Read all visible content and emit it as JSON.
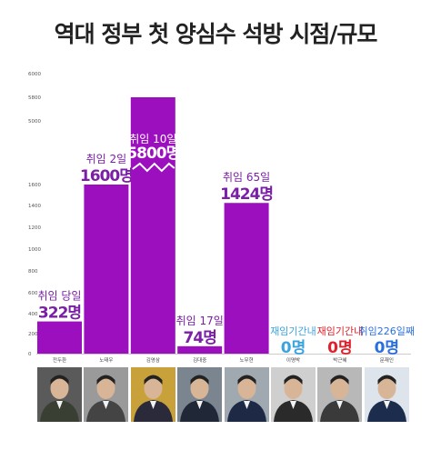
{
  "title": "역대 정부 첫 양심수 석방 시점/규모",
  "chart_data": {
    "type": "bar",
    "title": "역대 정부 첫 양심수 석방 시점/규모",
    "xlabel": "",
    "ylabel": "",
    "ylim": [
      0,
      6000
    ],
    "yticks": [
      0,
      200,
      400,
      600,
      800,
      1000,
      1200,
      1400,
      1600,
      5000,
      5800,
      6000
    ],
    "axis_break": true,
    "grid": false,
    "bar_color": "#9b0fbf",
    "categories": [
      "전두환",
      "노태우",
      "김영삼",
      "김대중",
      "노무현",
      "이명박",
      "박근혜",
      "문재인"
    ],
    "values": [
      322,
      1600,
      5800,
      74,
      1424,
      0,
      0,
      0
    ],
    "labels": [
      {
        "period": "취임 당일",
        "count": "322명",
        "color": "#7a1fa6"
      },
      {
        "period": "취임 2일",
        "count": "1600명",
        "color": "#7a1fa6"
      },
      {
        "period": "취임 10일",
        "count": "5800명",
        "color": "#ffffff"
      },
      {
        "period": "취임 17일",
        "count": "74명",
        "color": "#7a1fa6"
      },
      {
        "period": "취임 65일",
        "count": "1424명",
        "color": "#7a1fa6"
      },
      {
        "period": "재임기간내",
        "count": "0명",
        "color": "#3aa3e0"
      },
      {
        "period": "재임기간내",
        "count": "0명",
        "color": "#e0202a"
      },
      {
        "period": "취임226일째",
        "count": "0명",
        "color": "#2a6fe0"
      }
    ]
  },
  "photos": [
    {
      "name": "portrait-chun",
      "bg": "#5a5a5a",
      "suit": "#3a3f33"
    },
    {
      "name": "portrait-roh-tw",
      "bg": "#9a9a9a",
      "suit": "#444444"
    },
    {
      "name": "portrait-kim-ys",
      "bg": "#c9a13a",
      "suit": "#2a2a3a"
    },
    {
      "name": "portrait-kim-dj",
      "bg": "#7b8590",
      "suit": "#202838"
    },
    {
      "name": "portrait-roh-mh",
      "bg": "#a0a8b0",
      "suit": "#1e2a45"
    },
    {
      "name": "portrait-lee",
      "bg": "#cfcfcf",
      "suit": "#2a2a2a"
    },
    {
      "name": "portrait-park",
      "bg": "#b8b8b8",
      "suit": "#3a3a3a"
    },
    {
      "name": "portrait-moon",
      "bg": "#dde4ec",
      "suit": "#1c2c4c"
    }
  ]
}
